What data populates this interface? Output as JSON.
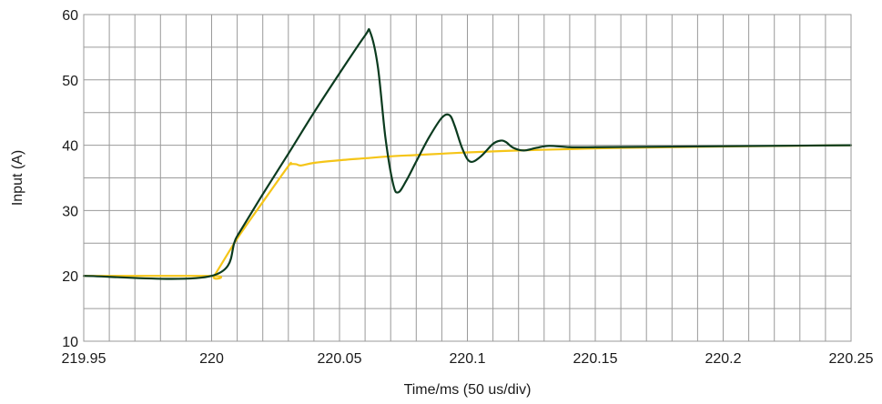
{
  "chart_data": {
    "type": "line",
    "title": "",
    "xlabel": "Time/ms (50 us/div)",
    "ylabel": "Input (A)",
    "xlim": [
      219.95,
      220.25
    ],
    "ylim": [
      10,
      60
    ],
    "x_major_ticks": [
      219.95,
      220,
      220.05,
      220.1,
      220.15,
      220.2,
      220.25
    ],
    "x_tick_labels": [
      "219.95",
      "220",
      "220.05",
      "220.1",
      "220.15",
      "220.2",
      "220.25"
    ],
    "x_minor_step": 0.01,
    "y_major_ticks": [
      10,
      20,
      30,
      40,
      50,
      60
    ],
    "y_tick_labels": [
      "10",
      "20",
      "30",
      "40",
      "50",
      "60"
    ],
    "y_minor_step": 5,
    "grid": true,
    "legend": "none",
    "series": [
      {
        "color": "#F5C518",
        "x": [
          219.95,
          220.0,
          220.001,
          220.01,
          220.02,
          220.03,
          220.031,
          220.033,
          220.035,
          220.04,
          220.05,
          220.06,
          220.07,
          220.08,
          220.09,
          220.1,
          220.12,
          220.14,
          220.16,
          220.2,
          220.25
        ],
        "y": [
          20,
          20,
          20.0,
          25.7,
          31.3,
          36.8,
          37.1,
          37.1,
          36.9,
          37.3,
          37.7,
          38.0,
          38.3,
          38.5,
          38.7,
          38.9,
          39.2,
          39.4,
          39.6,
          39.8,
          40.0
        ]
      },
      {
        "color": "#0B3B1F",
        "x": [
          219.95,
          220.0,
          220.01,
          220.02,
          220.03,
          220.04,
          220.05,
          220.06,
          220.062,
          220.065,
          220.068,
          220.071,
          220.073,
          220.076,
          220.08,
          220.085,
          220.09,
          220.093,
          220.095,
          220.098,
          220.101,
          220.105,
          220.11,
          220.113,
          220.115,
          220.118,
          220.122,
          220.127,
          220.132,
          220.14,
          220.15,
          220.2,
          220.25
        ],
        "y": [
          20,
          20,
          26.1,
          32.5,
          38.7,
          45.0,
          51.0,
          56.8,
          57.3,
          52.0,
          41.0,
          34.0,
          32.8,
          34.5,
          37.5,
          41.2,
          44.2,
          44.6,
          43.0,
          39.5,
          37.5,
          38.2,
          40.2,
          40.7,
          40.5,
          39.6,
          39.2,
          39.6,
          39.9,
          39.7,
          39.7,
          39.85,
          40.0
        ]
      }
    ]
  }
}
